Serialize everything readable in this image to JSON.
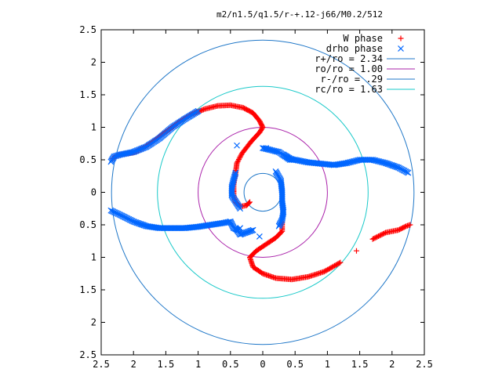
{
  "chart_data": {
    "type": "scatter",
    "title": "m2/n1.5/q1.5/r-+.12-j66/M0.2/512",
    "xlabel": "",
    "ylabel": "",
    "xlim": [
      -2.5,
      2.5
    ],
    "ylim": [
      -2.5,
      2.5
    ],
    "x_tick_labels": [
      "2.5",
      "2",
      "1.5",
      "1",
      "0.5",
      "0",
      "0.5",
      "1",
      "1.5",
      "2",
      "2.5"
    ],
    "y_tick_labels": [
      "2.5",
      "2",
      "1.5",
      "1",
      "0.5",
      "0",
      "0.5",
      "1",
      "1.5",
      "2",
      "2.5"
    ],
    "grid": false,
    "legend_position": "top-right",
    "series": [
      {
        "name": "W phase",
        "marker": "+",
        "color": "#ff0000",
        "points": [
          [
            -2.32,
            0.52
          ],
          [
            -2.25,
            0.57
          ],
          [
            -2.15,
            0.59
          ],
          [
            -2.0,
            0.61
          ],
          [
            -1.85,
            0.68
          ],
          [
            -1.7,
            0.78
          ],
          [
            -1.5,
            0.93
          ],
          [
            -1.3,
            1.08
          ],
          [
            -1.1,
            1.2
          ],
          [
            -0.9,
            1.28
          ],
          [
            -0.7,
            1.33
          ],
          [
            -0.5,
            1.34
          ],
          [
            -0.3,
            1.3
          ],
          [
            -0.15,
            1.22
          ],
          [
            -0.05,
            1.1
          ],
          [
            0.0,
            1.0
          ],
          [
            -0.05,
            0.92
          ],
          [
            -0.18,
            0.78
          ],
          [
            -0.32,
            0.6
          ],
          [
            -0.4,
            0.45
          ],
          [
            -0.42,
            0.3
          ],
          [
            -0.45,
            0.12
          ],
          [
            -0.45,
            -0.05
          ],
          [
            -0.42,
            -0.15
          ],
          [
            -0.35,
            -0.22
          ],
          [
            -0.25,
            -0.2
          ],
          [
            -0.2,
            -0.15
          ],
          [
            0.3,
            -0.45
          ],
          [
            0.3,
            -0.6
          ],
          [
            0.2,
            -0.7
          ],
          [
            0.05,
            -0.8
          ],
          [
            -0.1,
            -0.9
          ],
          [
            -0.2,
            -1.0
          ],
          [
            -0.15,
            -1.15
          ],
          [
            0.0,
            -1.25
          ],
          [
            0.2,
            -1.32
          ],
          [
            0.45,
            -1.34
          ],
          [
            0.7,
            -1.3
          ],
          [
            0.95,
            -1.22
          ],
          [
            1.2,
            -1.08
          ],
          [
            1.45,
            -0.9
          ],
          [
            1.7,
            -0.72
          ],
          [
            1.9,
            -0.62
          ],
          [
            2.1,
            -0.58
          ],
          [
            2.22,
            -0.52
          ],
          [
            2.28,
            -0.5
          ]
        ]
      },
      {
        "name": "drho phase",
        "marker": "x",
        "color": "#0066ff",
        "points": [
          [
            -2.35,
            0.47
          ],
          [
            -2.3,
            0.55
          ],
          [
            -2.2,
            0.58
          ],
          [
            -2.0,
            0.62
          ],
          [
            -1.8,
            0.7
          ],
          [
            -1.6,
            0.83
          ],
          [
            -1.4,
            1.0
          ],
          [
            -1.2,
            1.13
          ],
          [
            -1.0,
            1.25
          ],
          [
            -2.35,
            -0.28
          ],
          [
            -2.2,
            -0.35
          ],
          [
            -2.0,
            -0.45
          ],
          [
            -1.8,
            -0.52
          ],
          [
            -1.6,
            -0.55
          ],
          [
            -1.4,
            -0.55
          ],
          [
            -1.2,
            -0.55
          ],
          [
            -1.0,
            -0.53
          ],
          [
            -0.8,
            -0.5
          ],
          [
            -0.6,
            -0.47
          ],
          [
            -0.5,
            -0.45
          ],
          [
            -0.45,
            -0.55
          ],
          [
            -0.38,
            -0.58
          ],
          [
            -0.35,
            -0.55
          ],
          [
            0.0,
            0.68
          ],
          [
            0.25,
            0.62
          ],
          [
            0.35,
            0.55
          ],
          [
            0.42,
            0.5
          ],
          [
            0.5,
            0.5
          ],
          [
            0.7,
            0.46
          ],
          [
            0.9,
            0.44
          ],
          [
            1.1,
            0.42
          ],
          [
            1.3,
            0.45
          ],
          [
            1.5,
            0.5
          ],
          [
            1.7,
            0.5
          ],
          [
            1.9,
            0.45
          ],
          [
            2.1,
            0.38
          ],
          [
            2.25,
            0.3
          ],
          [
            -0.42,
            0.3
          ],
          [
            -0.45,
            0.2
          ],
          [
            -0.48,
            0.08
          ],
          [
            -0.48,
            -0.05
          ],
          [
            -0.35,
            -0.25
          ],
          [
            -0.42,
            -0.55
          ],
          [
            -0.35,
            -0.65
          ],
          [
            -0.15,
            -0.58
          ],
          [
            0.2,
            0.32
          ],
          [
            0.28,
            0.18
          ],
          [
            0.3,
            0.0
          ],
          [
            0.3,
            -0.15
          ],
          [
            0.32,
            -0.3
          ],
          [
            0.3,
            -0.42
          ],
          [
            0.25,
            -0.52
          ],
          [
            -0.05,
            -0.68
          ],
          [
            -0.4,
            0.72
          ],
          [
            0.32,
            0.58
          ],
          [
            0.42,
            0.52
          ],
          [
            0.48,
            0.5
          ],
          [
            0.05,
            0.68
          ]
        ]
      }
    ],
    "circles": [
      {
        "name": "r+/ro = 2.34",
        "radius": 2.34,
        "color": "#1f77c8"
      },
      {
        "name": "ro/ro = 1.00",
        "radius": 1.0,
        "color": "#aa22aa"
      },
      {
        "name": "r-/ro = .29",
        "radius": 0.29,
        "color": "#1f77c8"
      },
      {
        "name": "rc/ro = 1.63",
        "radius": 1.63,
        "color": "#19c9c9"
      }
    ]
  }
}
